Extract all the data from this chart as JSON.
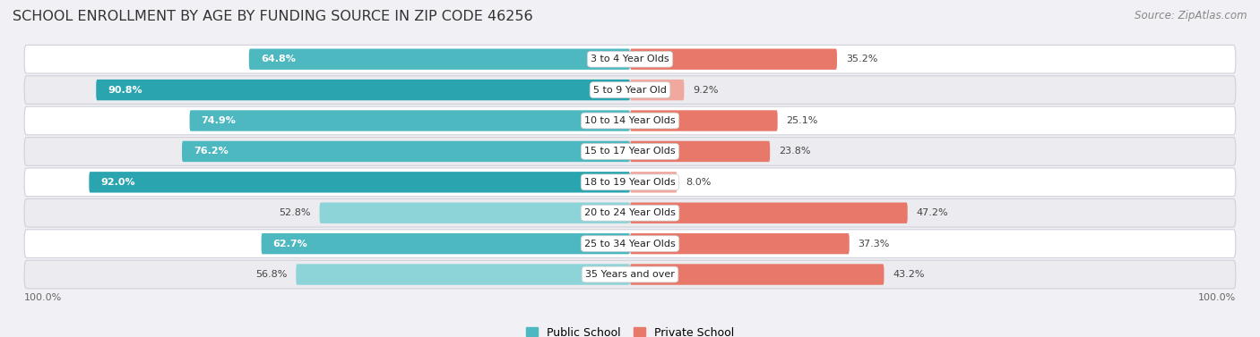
{
  "title": "SCHOOL ENROLLMENT BY AGE BY FUNDING SOURCE IN ZIP CODE 46256",
  "source": "Source: ZipAtlas.com",
  "categories": [
    "3 to 4 Year Olds",
    "5 to 9 Year Old",
    "10 to 14 Year Olds",
    "15 to 17 Year Olds",
    "18 to 19 Year Olds",
    "20 to 24 Year Olds",
    "25 to 34 Year Olds",
    "35 Years and over"
  ],
  "public_values": [
    64.8,
    90.8,
    74.9,
    76.2,
    92.0,
    52.8,
    62.7,
    56.8
  ],
  "private_values": [
    35.2,
    9.2,
    25.1,
    23.8,
    8.0,
    47.2,
    37.3,
    43.2
  ],
  "public_colors": [
    "#4db8c0",
    "#2aa5b0",
    "#4db8c0",
    "#4db8c0",
    "#2aa5b0",
    "#8dd4d8",
    "#4db8c0",
    "#8dd4d8"
  ],
  "private_colors": [
    "#e8796a",
    "#f0a89f",
    "#e8796a",
    "#e8796a",
    "#f0a89f",
    "#e8796a",
    "#e8796a",
    "#e8796a"
  ],
  "row_bg_even": "#ffffff",
  "row_bg_odd": "#ebebf0",
  "fig_bg": "#f0f0f5",
  "title_fontsize": 11.5,
  "source_fontsize": 8.5,
  "label_fontsize": 8,
  "value_fontsize": 8,
  "legend_fontsize": 9,
  "axis_label_fontsize": 8
}
